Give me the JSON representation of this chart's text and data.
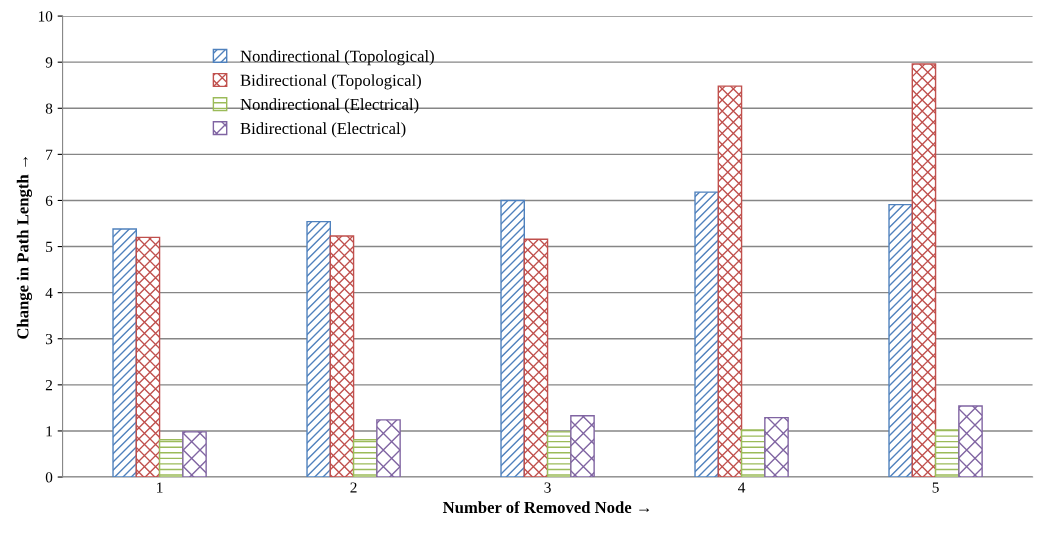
{
  "chart_data": {
    "type": "bar",
    "xlabel": "Number of Removed Node →",
    "ylabel": "Change in Path Length →",
    "categories": [
      "1",
      "2",
      "3",
      "4",
      "5"
    ],
    "series": [
      {
        "name": "Nondirectional (Topological)",
        "color": "#4f81bd",
        "values": [
          5.38,
          5.54,
          6.0,
          6.18,
          5.91
        ]
      },
      {
        "name": "Bidirectional (Topological)",
        "color": "#c0504d",
        "values": [
          5.2,
          5.23,
          5.16,
          8.48,
          8.96
        ]
      },
      {
        "name": "Nondirectional (Electrical)",
        "color": "#9bbb59",
        "values": [
          0.81,
          0.81,
          0.98,
          1.02,
          1.02
        ]
      },
      {
        "name": "Bidirectional (Electrical)",
        "color": "#8064a2",
        "values": [
          0.98,
          1.24,
          1.33,
          1.29,
          1.54
        ]
      }
    ],
    "ylim": [
      0,
      10
    ],
    "yticks": [
      0,
      1,
      2,
      3,
      4,
      5,
      6,
      7,
      8,
      9,
      10
    ],
    "grid": "y",
    "legend": "top left"
  }
}
